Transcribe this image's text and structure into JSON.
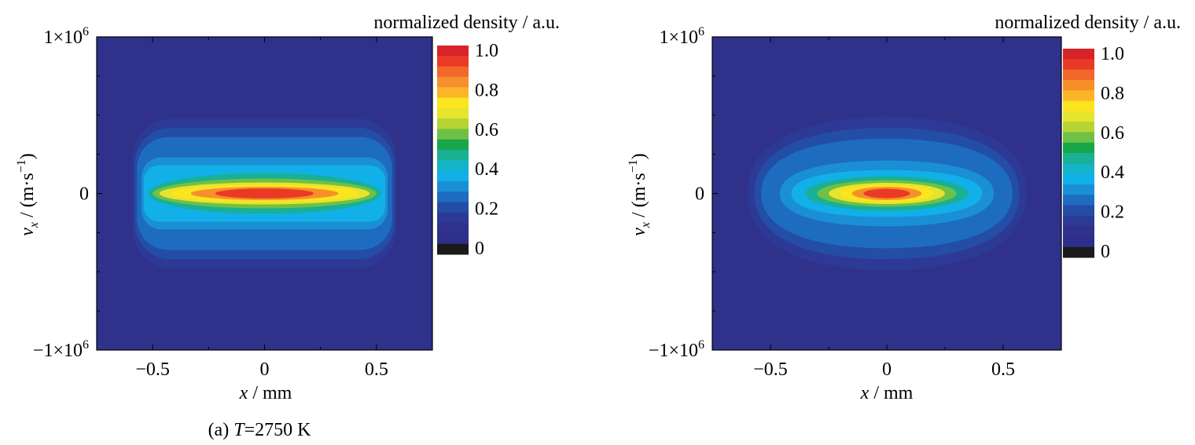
{
  "colorscale": {
    "title": "normalized density / a.u.",
    "ticks": [
      "1.0",
      "0.8",
      "0.6",
      "0.4",
      "0.2",
      "0"
    ],
    "bands": [
      "#d7242a",
      "#ea3a25",
      "#f2682b",
      "#f7902c",
      "#fbb526",
      "#fce51f",
      "#e6e42c",
      "#b5d334",
      "#6fc046",
      "#17a64a",
      "#19b093",
      "#14b4c7",
      "#12b0e8",
      "#1a8fd6",
      "#1d6cc0",
      "#244da6",
      "#2c3a96",
      "#2f318a",
      "#2d2f8a",
      "#1a1a1a"
    ],
    "range": [
      0,
      1.0
    ]
  },
  "chart_data": [
    {
      "type": "heatmap",
      "title": "",
      "caption_prefix": "(a) ",
      "caption_var": "T",
      "caption_value": "=2750 K",
      "xlabel_var": "x",
      "xlabel_unit": " / mm",
      "ylabel_var": "v",
      "ylabel_sub": "x",
      "ylabel_unit": " / (m·s",
      "ylabel_exp": "−1",
      "ylabel_close": ")",
      "xlim": [
        -0.75,
        0.75
      ],
      "ylim": [
        -1000000,
        1000000
      ],
      "xticks": [
        -0.5,
        0,
        0.5
      ],
      "xtick_labels": [
        "−0.5",
        "0",
        "0.5"
      ],
      "yticks": [
        -1000000,
        0,
        1000000
      ],
      "ytick_labels": [
        {
          "mant": "−1×10",
          "exp": "6"
        },
        {
          "mant": "0",
          "exp": ""
        },
        {
          "mant": "1×10",
          "exp": "6"
        }
      ],
      "background_level": 0.05,
      "contours": [
        {
          "level": 0.1,
          "half_width_mm": 0.59,
          "half_height_v": 480000,
          "shape": "rounded-rect"
        },
        {
          "level": 0.15,
          "half_width_mm": 0.58,
          "half_height_v": 420000,
          "shape": "rounded-rect"
        },
        {
          "level": 0.2,
          "half_width_mm": 0.57,
          "half_height_v": 360000,
          "shape": "rounded-rect"
        },
        {
          "level": 0.25,
          "half_width_mm": 0.56,
          "half_height_v": 290000,
          "shape": "rounded-rect"
        },
        {
          "level": 0.3,
          "half_width_mm": 0.55,
          "half_height_v": 230000,
          "shape": "rounded-rect"
        },
        {
          "level": 0.35,
          "half_width_mm": 0.54,
          "half_height_v": 180000,
          "shape": "rounded-rect"
        },
        {
          "level": 0.45,
          "half_width_mm": 0.52,
          "half_height_v": 130000,
          "shape": "ellipse"
        },
        {
          "level": 0.55,
          "half_width_mm": 0.5,
          "half_height_v": 95000,
          "shape": "ellipse"
        },
        {
          "level": 0.65,
          "half_width_mm": 0.47,
          "half_height_v": 70000,
          "shape": "ellipse"
        },
        {
          "level": 0.75,
          "half_width_mm": 0.42,
          "half_height_v": 55000,
          "shape": "ellipse"
        },
        {
          "level": 0.85,
          "half_width_mm": 0.33,
          "half_height_v": 42000,
          "shape": "ellipse"
        },
        {
          "level": 0.95,
          "half_width_mm": 0.22,
          "half_height_v": 32000,
          "shape": "ellipse"
        }
      ]
    },
    {
      "type": "heatmap",
      "title": "",
      "caption_prefix": "",
      "caption_var": "",
      "caption_value": "",
      "xlabel_var": "x",
      "xlabel_unit": " / mm",
      "ylabel_var": "v",
      "ylabel_sub": "x",
      "ylabel_unit": " / (m·s",
      "ylabel_exp": "−1",
      "ylabel_close": ")",
      "xlim": [
        -0.75,
        0.75
      ],
      "ylim": [
        -1000000,
        1000000
      ],
      "xticks": [
        -0.5,
        0,
        0.5
      ],
      "xtick_labels": [
        "−0.5",
        "0",
        "0.5"
      ],
      "yticks": [
        -1000000,
        0,
        1000000
      ],
      "ytick_labels": [
        {
          "mant": "−1×10",
          "exp": "6"
        },
        {
          "mant": "0",
          "exp": ""
        },
        {
          "mant": "1×10",
          "exp": "6"
        }
      ],
      "background_level": 0.05,
      "contours": [
        {
          "level": 0.1,
          "half_width_mm": 0.6,
          "half_height_v": 490000,
          "shape": "oval"
        },
        {
          "level": 0.15,
          "half_width_mm": 0.57,
          "half_height_v": 420000,
          "shape": "oval"
        },
        {
          "level": 0.2,
          "half_width_mm": 0.54,
          "half_height_v": 350000,
          "shape": "oval"
        },
        {
          "level": 0.25,
          "half_width_mm": 0.5,
          "half_height_v": 280000,
          "shape": "oval"
        },
        {
          "level": 0.3,
          "half_width_mm": 0.46,
          "half_height_v": 210000,
          "shape": "oval"
        },
        {
          "level": 0.35,
          "half_width_mm": 0.41,
          "half_height_v": 150000,
          "shape": "oval"
        },
        {
          "level": 0.45,
          "half_width_mm": 0.35,
          "half_height_v": 110000,
          "shape": "ellipse"
        },
        {
          "level": 0.55,
          "half_width_mm": 0.3,
          "half_height_v": 85000,
          "shape": "ellipse"
        },
        {
          "level": 0.65,
          "half_width_mm": 0.25,
          "half_height_v": 68000,
          "shape": "ellipse"
        },
        {
          "level": 0.75,
          "half_width_mm": 0.2,
          "half_height_v": 55000,
          "shape": "ellipse"
        },
        {
          "level": 0.85,
          "half_width_mm": 0.15,
          "half_height_v": 42000,
          "shape": "ellipse"
        },
        {
          "level": 0.95,
          "half_width_mm": 0.1,
          "half_height_v": 30000,
          "shape": "ellipse"
        }
      ]
    }
  ]
}
